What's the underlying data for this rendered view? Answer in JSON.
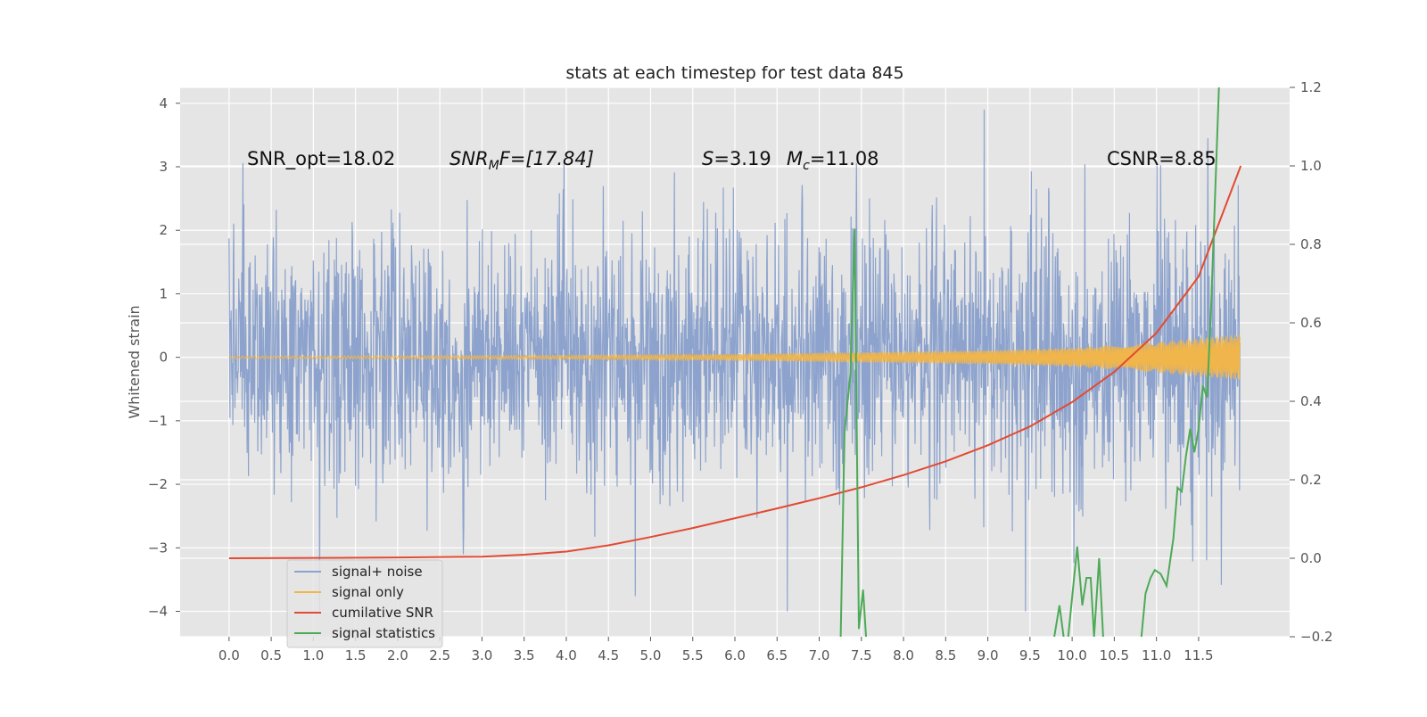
{
  "chart_data": {
    "type": "line",
    "title": "stats at each timestep for test data 845",
    "ylabel": "Whitened strain",
    "xlabel": "",
    "x_ticks": [
      "0.0",
      "0.5",
      "1.0",
      "1.5",
      "2.0",
      "2.5",
      "3.0",
      "3.5",
      "4.0",
      "4.5",
      "5.0",
      "5.5",
      "6.0",
      "6.5",
      "7.0",
      "7.5",
      "8.0",
      "8.5",
      "9.0",
      "9.5",
      "10.0",
      "10.5",
      "11.0",
      "11.5"
    ],
    "xlim": [
      -0.58,
      12.58
    ],
    "ylim_left": [
      -4.4,
      4.25
    ],
    "ylim_right": [
      -0.2,
      1.2
    ],
    "y_ticks_left": [
      "4",
      "3",
      "2",
      "1",
      "0",
      "−1",
      "−2",
      "−3",
      "−4"
    ],
    "y_ticks_right": [
      "1.2",
      "1.0",
      "0.8",
      "0.6",
      "0.4",
      "0.2",
      "0.0",
      "−0.2"
    ],
    "grid": true,
    "legend_position": "bottom-left",
    "annotations": {
      "snr_opt": "SNR_opt=18.02",
      "snr_mf": "SNR",
      "snr_mf_sub": "M",
      "snr_mf_tail": "F=[17.84]",
      "s_label": "S",
      "s_value": "=3.19",
      "mc_label": "M",
      "mc_sub": "c",
      "mc_value": "=11.08",
      "csnr": "CSNR=8.85"
    },
    "series": [
      {
        "name": "signal+ noise",
        "axis": "left",
        "color": "#8da3cd",
        "description_range": "noise band roughly between -2 and 2 with spikes",
        "x_range": [
          0.0,
          11.99
        ],
        "y_band": [
          -2.0,
          2.0
        ]
      },
      {
        "name": "signal only",
        "axis": "left",
        "color": "#f0b54b",
        "envelope_x": [
          0,
          4,
          6,
          7,
          8,
          9,
          10,
          10.5,
          11,
          11.5,
          11.99
        ],
        "envelope_y": [
          0.02,
          0.03,
          0.05,
          0.07,
          0.09,
          0.11,
          0.15,
          0.19,
          0.24,
          0.3,
          0.36
        ]
      },
      {
        "name": "cumilative SNR",
        "axis": "right",
        "color": "#e24a33",
        "x": [
          0,
          1,
          2,
          3,
          3.5,
          4,
          4.5,
          5,
          5.5,
          6,
          6.5,
          7,
          7.5,
          8,
          8.5,
          9,
          9.5,
          10,
          10.5,
          11,
          11.5,
          12
        ],
        "y": [
          0.0,
          0.001,
          0.002,
          0.004,
          0.009,
          0.017,
          0.033,
          0.054,
          0.077,
          0.102,
          0.127,
          0.153,
          0.181,
          0.212,
          0.247,
          0.288,
          0.336,
          0.398,
          0.475,
          0.574,
          0.718,
          1.0
        ]
      },
      {
        "name": "signal statistics",
        "axis": "right",
        "color": "#4daa57",
        "segments": [
          {
            "x": [
              7.25,
              7.3,
              7.37,
              7.42,
              7.47,
              7.52,
              7.57,
              7.6
            ],
            "y": [
              -0.25,
              0.32,
              0.47,
              0.84,
              -0.18,
              -0.08,
              -0.25,
              -0.3
            ]
          },
          {
            "x": [
              9.75,
              9.85,
              9.93,
              10.0,
              10.06,
              10.12,
              10.17,
              10.22,
              10.26,
              10.32,
              10.38
            ],
            "y": [
              -0.25,
              -0.12,
              -0.25,
              -0.1,
              0.03,
              -0.12,
              -0.05,
              -0.05,
              -0.2,
              0.0,
              -0.25
            ]
          },
          {
            "x": [
              10.8,
              10.87,
              10.93,
              10.98,
              11.05,
              11.12,
              11.2,
              11.25,
              11.3,
              11.35,
              11.4,
              11.45,
              11.5,
              11.55,
              11.6,
              11.65,
              11.7,
              11.75
            ],
            "y": [
              -0.25,
              -0.09,
              -0.05,
              -0.03,
              -0.04,
              -0.07,
              0.05,
              0.18,
              0.17,
              0.26,
              0.33,
              0.27,
              0.33,
              0.44,
              0.41,
              0.65,
              0.95,
              1.25
            ]
          }
        ]
      }
    ]
  }
}
